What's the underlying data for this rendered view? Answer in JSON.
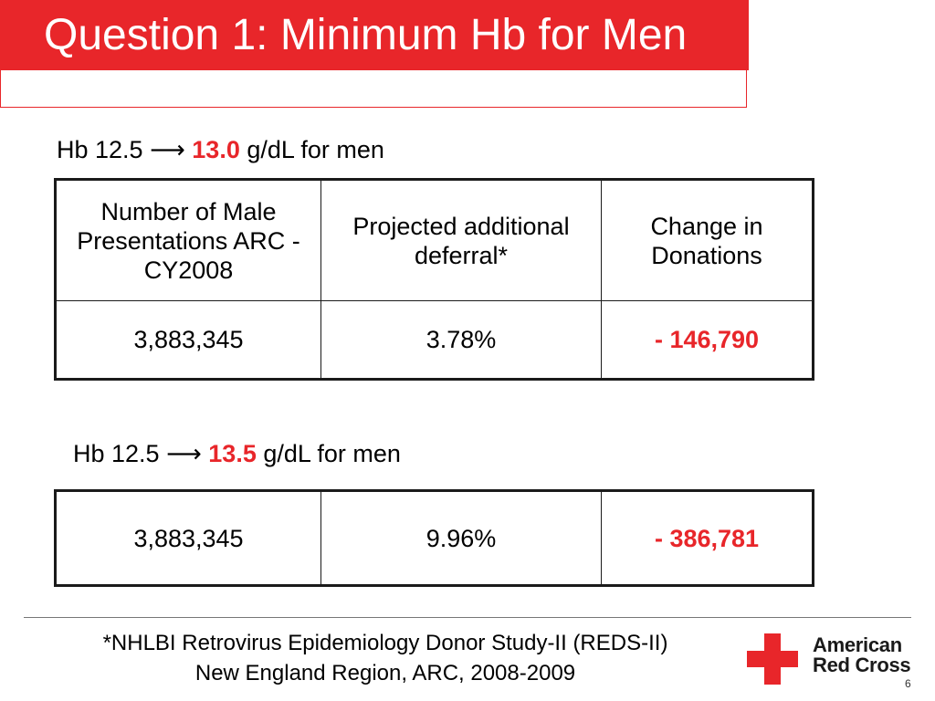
{
  "slide": {
    "title": "Question 1: Minimum Hb for Men",
    "page_number": "6"
  },
  "scenario1": {
    "heading_prefix": "Hb 12.5 ⟶ ",
    "heading_value": "13.0",
    "heading_suffix": " g/dL for men",
    "table": {
      "headers": [
        "Number of Male Presentations ARC - CY2008",
        "Projected additional deferral*",
        "Change in Donations"
      ],
      "row": [
        "3,883,345",
        "3.78%",
        "- 146,790"
      ]
    }
  },
  "scenario2": {
    "heading_prefix": "Hb 12.5 ⟶ ",
    "heading_value": "13.5",
    "heading_suffix": " g/dL for men",
    "table": {
      "row": [
        "3,883,345",
        "9.96%",
        "- 386,781"
      ]
    }
  },
  "footnote": {
    "line1": "*NHLBI Retrovirus Epidemiology Donor Study-II (REDS-II)",
    "line2": "New England Region, ARC, 2008-2009"
  },
  "logo": {
    "line1": "American",
    "line2": "Red Cross",
    "icon": "red-cross-icon",
    "color": "#e8262a"
  }
}
